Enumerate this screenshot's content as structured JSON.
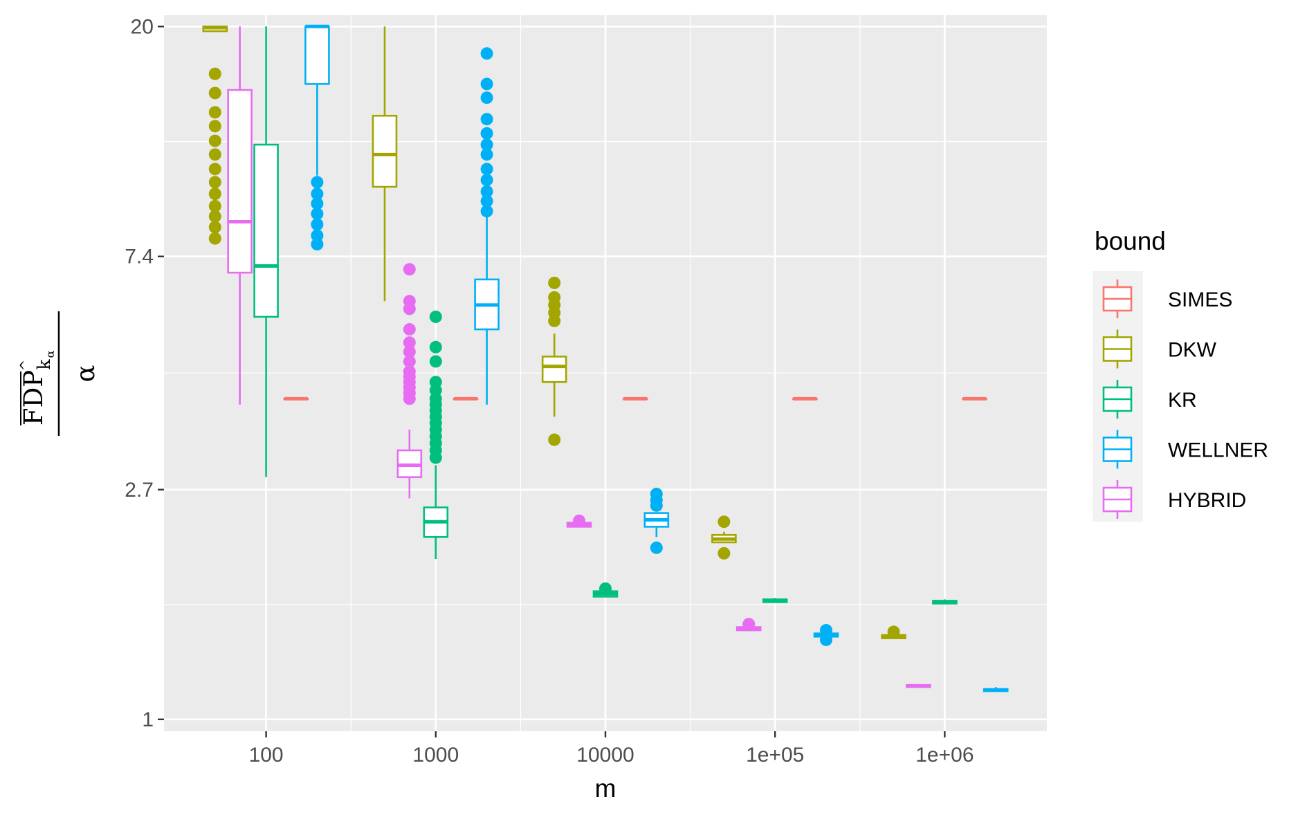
{
  "chart_data": {
    "type": "boxplot",
    "xlabel": "m",
    "ylabel_parts": {
      "numerator": "FDP",
      "subscript": "k",
      "subsubscript": "α",
      "hat": "^",
      "denominator": "α"
    },
    "x_scale": "log10",
    "y_scale": "log",
    "x_tick_labels": [
      "100",
      "1000",
      "10000",
      "1e+05",
      "1e+06"
    ],
    "x_ticks": [
      100,
      1000,
      10000,
      100000,
      1000000
    ],
    "y_tick_labels": [
      "1",
      "2.7",
      "7.4",
      "20"
    ],
    "y_ticks": [
      1,
      2.7,
      7.4,
      20
    ],
    "xlim": [
      25,
      4000000
    ],
    "ylim": [
      0.95,
      21
    ],
    "legend": {
      "title": "bound",
      "placement": "right"
    },
    "series": [
      {
        "name": "SIMES",
        "color": "#F8766D",
        "boxes": [
          {
            "m": 150,
            "lower": 4.0,
            "q1": 4.0,
            "median": 4.0,
            "q3": 4.0,
            "upper": 4.0,
            "outliers": []
          },
          {
            "m": 1500,
            "lower": 4.0,
            "q1": 4.0,
            "median": 4.0,
            "q3": 4.0,
            "upper": 4.0,
            "outliers": []
          },
          {
            "m": 15000,
            "lower": 4.0,
            "q1": 4.0,
            "median": 4.0,
            "q3": 4.0,
            "upper": 4.0,
            "outliers": []
          },
          {
            "m": 150000,
            "lower": 4.0,
            "q1": 4.0,
            "median": 4.0,
            "q3": 4.0,
            "upper": 4.0,
            "outliers": []
          },
          {
            "m": 1500000,
            "lower": 4.0,
            "q1": 4.0,
            "median": 4.0,
            "q3": 4.0,
            "upper": 4.0,
            "outliers": []
          }
        ]
      },
      {
        "name": "DKW",
        "color": "#A3A500",
        "boxes": [
          {
            "m": 50,
            "lower": 20,
            "q1": 19.6,
            "median": 19.9,
            "q3": 20,
            "upper": 20,
            "outliers": [
              16.3,
              15.0,
              13.8,
              13.0,
              12.2,
              11.5,
              10.8,
              10.2,
              9.7,
              9.2,
              8.8,
              8.4,
              8.0
            ]
          },
          {
            "m": 500,
            "lower": 6.1,
            "q1": 10.0,
            "median": 11.5,
            "q3": 13.6,
            "upper": 20,
            "outliers": []
          },
          {
            "m": 5000,
            "lower": 3.7,
            "q1": 4.3,
            "median": 4.6,
            "q3": 4.8,
            "upper": 5.3,
            "outliers": [
              6.6,
              6.2,
              6.0,
              5.8,
              5.6,
              3.35
            ]
          },
          {
            "m": 50000,
            "lower": 2.15,
            "q1": 2.15,
            "median": 2.18,
            "q3": 2.22,
            "upper": 2.25,
            "outliers": [
              2.35,
              2.05
            ]
          },
          {
            "m": 500000,
            "lower": 1.42,
            "q1": 1.42,
            "median": 1.43,
            "q3": 1.44,
            "upper": 1.45,
            "outliers": [
              1.46
            ]
          }
        ]
      },
      {
        "name": "KR",
        "color": "#00BF7D",
        "boxes": [
          {
            "m": 100,
            "lower": 2.85,
            "q1": 5.7,
            "median": 7.1,
            "q3": 12.0,
            "upper": 20,
            "outliers": []
          },
          {
            "m": 1000,
            "lower": 2.0,
            "q1": 2.2,
            "median": 2.35,
            "q3": 2.5,
            "upper": 3.0,
            "outliers": [
              5.7,
              5.0,
              4.7,
              4.3,
              4.15,
              4.0,
              3.9,
              3.8,
              3.7,
              3.6,
              3.5,
              3.4,
              3.3,
              3.2,
              3.1
            ]
          },
          {
            "m": 10000,
            "lower": 1.7,
            "q1": 1.7,
            "median": 1.72,
            "q3": 1.74,
            "upper": 1.75,
            "outliers": [
              1.76
            ]
          },
          {
            "m": 100000,
            "lower": 1.66,
            "q1": 1.66,
            "median": 1.67,
            "q3": 1.68,
            "upper": 1.69,
            "outliers": []
          },
          {
            "m": 1000000,
            "lower": 1.65,
            "q1": 1.65,
            "median": 1.66,
            "q3": 1.67,
            "upper": 1.68,
            "outliers": []
          }
        ]
      },
      {
        "name": "WELLNER",
        "color": "#00B0F6",
        "boxes": [
          {
            "m": 200,
            "lower": 10.5,
            "q1": 15.6,
            "median": 20,
            "q3": 20,
            "upper": 20,
            "outliers": [
              10.2,
              9.7,
              9.3,
              8.9,
              8.5,
              8.1,
              7.8
            ]
          },
          {
            "m": 2000,
            "lower": 3.9,
            "q1": 5.4,
            "median": 6.0,
            "q3": 6.7,
            "upper": 8.8,
            "outliers": [
              17.8,
              15.6,
              14.7,
              13.4,
              12.6,
              12.0,
              11.5,
              10.8,
              10.3,
              9.8,
              9.4,
              9.0
            ]
          },
          {
            "m": 20000,
            "lower": 2.2,
            "q1": 2.3,
            "median": 2.37,
            "q3": 2.44,
            "upper": 2.45,
            "outliers": [
              2.65,
              2.58,
              2.52,
              2.1
            ]
          },
          {
            "m": 200000,
            "lower": 1.43,
            "q1": 1.43,
            "median": 1.44,
            "q3": 1.45,
            "upper": 1.46,
            "outliers": [
              1.47,
              1.41
            ]
          },
          {
            "m": 2000000,
            "lower": 1.13,
            "q1": 1.13,
            "median": 1.135,
            "q3": 1.14,
            "upper": 1.15,
            "outliers": []
          }
        ]
      },
      {
        "name": "HYBRID",
        "color": "#E76BF3",
        "boxes": [
          {
            "m": 70,
            "lower": 3.9,
            "q1": 6.9,
            "median": 8.6,
            "q3": 15.2,
            "upper": 20,
            "outliers": []
          },
          {
            "m": 700,
            "lower": 2.6,
            "q1": 2.85,
            "median": 3.0,
            "q3": 3.2,
            "upper": 3.5,
            "outliers": [
              7.0,
              6.1,
              5.9,
              5.4,
              5.1,
              4.9,
              4.7,
              4.5,
              4.4,
              4.3,
              4.2,
              4.1,
              4.0
            ]
          },
          {
            "m": 7000,
            "lower": 2.3,
            "q1": 2.3,
            "median": 2.32,
            "q3": 2.34,
            "upper": 2.35,
            "outliers": [
              2.36
            ]
          },
          {
            "m": 70000,
            "lower": 1.47,
            "q1": 1.47,
            "median": 1.48,
            "q3": 1.49,
            "upper": 1.5,
            "outliers": [
              1.51
            ]
          },
          {
            "m": 700000,
            "lower": 1.15,
            "q1": 1.15,
            "median": 1.155,
            "q3": 1.16,
            "upper": 1.165,
            "outliers": []
          }
        ]
      }
    ]
  }
}
